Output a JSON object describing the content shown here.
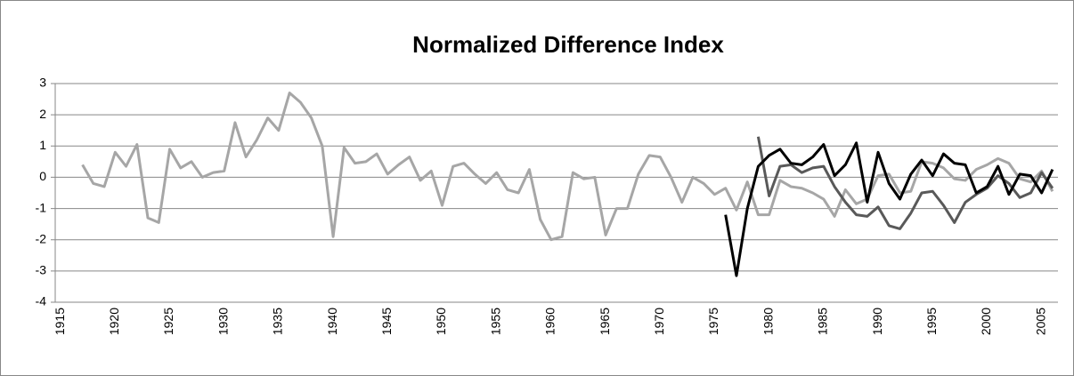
{
  "chart_data": {
    "type": "line",
    "title": "Normalized Difference Index",
    "categories": [
      "1915",
      null,
      null,
      null,
      null,
      "1920",
      null,
      null,
      null,
      null,
      "1925",
      null,
      null,
      null,
      null,
      "1930",
      null,
      null,
      null,
      null,
      "1935",
      null,
      null,
      null,
      null,
      "1940",
      null,
      null,
      null,
      null,
      "1945",
      null,
      null,
      null,
      null,
      "1950",
      null,
      null,
      null,
      null,
      "1955",
      null,
      null,
      null,
      null,
      "1960",
      null,
      null,
      null,
      null,
      "1965",
      null,
      null,
      null,
      null,
      "1970",
      null,
      null,
      null,
      null,
      "1975",
      null,
      null,
      null,
      null,
      "1980",
      null,
      null,
      null,
      null,
      "1985",
      null,
      null,
      null,
      null,
      "1990",
      null,
      null,
      null,
      null,
      "1995",
      null,
      null,
      null,
      null,
      "2000",
      null,
      null,
      null,
      null,
      "2005",
      null
    ],
    "series": [
      {
        "color": "#a6a6a6",
        "values": [
          null,
          null,
          0.4,
          -0.2,
          -0.3,
          0.8,
          0.35,
          1.05,
          -1.3,
          -1.45,
          0.9,
          0.3,
          0.5,
          0,
          0.15,
          0.2,
          1.75,
          0.65,
          1.2,
          1.9,
          1.5,
          2.7,
          2.4,
          1.9,
          1.0,
          -1.9,
          0.95,
          0.45,
          0.5,
          0.75,
          0.1,
          0.4,
          0.65,
          -0.1,
          0.2,
          -0.9,
          0.35,
          0.45,
          0.1,
          -0.2,
          0.15,
          -0.4,
          -0.5,
          0.25,
          -1.35,
          -2.0,
          -1.9,
          0.15,
          -0.05,
          0,
          -1.85,
          -1.0,
          -1.0,
          0.1,
          0.7,
          0.65,
          0,
          -0.8,
          0,
          -0.2,
          -0.55,
          -0.35,
          -1.05,
          -0.15,
          -1.2,
          -1.2,
          -0.1,
          -0.3,
          -0.35,
          -0.5,
          -0.7,
          -1.25,
          -0.4,
          -0.85,
          -0.7,
          0.05,
          0.1,
          -0.5,
          -0.45,
          0.5,
          0.45,
          0.3,
          -0.05,
          -0.1,
          0.25,
          0.4,
          0.6,
          0.45,
          -0.05,
          -0.15,
          0.2,
          -0.45
        ]
      },
      {
        "color": "#595959",
        "values": [
          null,
          null,
          null,
          null,
          null,
          null,
          null,
          null,
          null,
          null,
          null,
          null,
          null,
          null,
          null,
          null,
          null,
          null,
          null,
          null,
          null,
          null,
          null,
          null,
          null,
          null,
          null,
          null,
          null,
          null,
          null,
          null,
          null,
          null,
          null,
          null,
          null,
          null,
          null,
          null,
          null,
          null,
          null,
          null,
          null,
          null,
          null,
          null,
          null,
          null,
          null,
          null,
          null,
          null,
          null,
          null,
          null,
          null,
          null,
          null,
          null,
          null,
          null,
          null,
          1.3,
          -0.6,
          0.35,
          0.4,
          0.15,
          0.3,
          0.35,
          -0.3,
          -0.8,
          -1.2,
          -1.25,
          -0.95,
          -1.55,
          -1.65,
          -1.15,
          -0.5,
          -0.45,
          -0.9,
          -1.45,
          -0.8,
          -0.55,
          -0.35,
          0.05,
          -0.2,
          -0.65,
          -0.5,
          0.15,
          -0.35
        ]
      },
      {
        "color": "#000000",
        "values": [
          null,
          null,
          null,
          null,
          null,
          null,
          null,
          null,
          null,
          null,
          null,
          null,
          null,
          null,
          null,
          null,
          null,
          null,
          null,
          null,
          null,
          null,
          null,
          null,
          null,
          null,
          null,
          null,
          null,
          null,
          null,
          null,
          null,
          null,
          null,
          null,
          null,
          null,
          null,
          null,
          null,
          null,
          null,
          null,
          null,
          null,
          null,
          null,
          null,
          null,
          null,
          null,
          null,
          null,
          null,
          null,
          null,
          null,
          null,
          null,
          null,
          -1.2,
          -3.15,
          -1.0,
          0.35,
          0.7,
          0.9,
          0.45,
          0.4,
          0.65,
          1.05,
          0.05,
          0.4,
          1.1,
          -0.8,
          0.8,
          -0.2,
          -0.7,
          0.1,
          0.55,
          0.05,
          0.75,
          0.45,
          0.4,
          -0.5,
          -0.3,
          0.35,
          -0.55,
          0.1,
          0.05,
          -0.5,
          0.25
        ]
      }
    ],
    "ylim": [
      -4,
      3
    ],
    "yticks": [
      -4,
      -3,
      -2,
      -1,
      0,
      1,
      2,
      3
    ],
    "grid": true
  }
}
